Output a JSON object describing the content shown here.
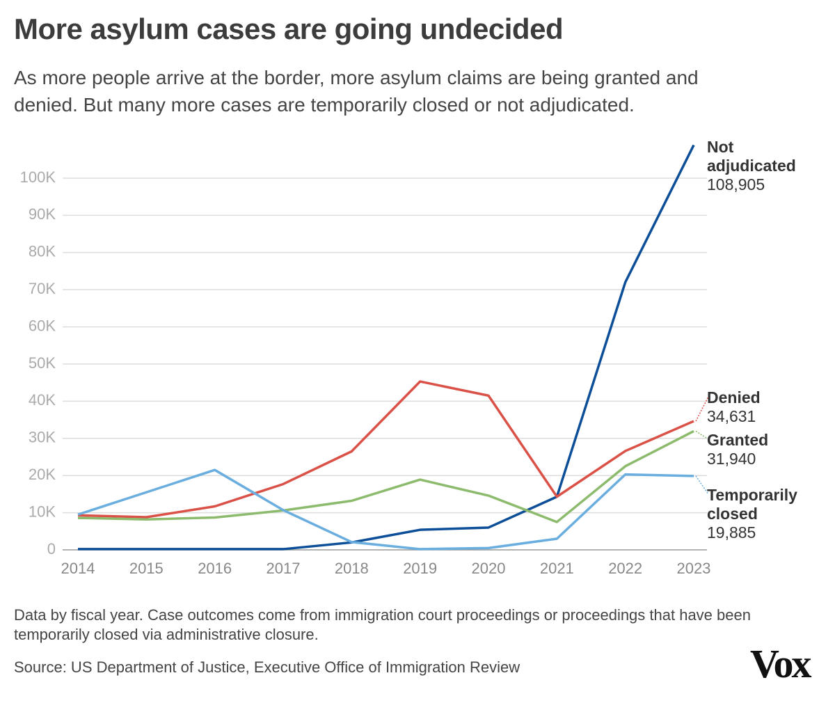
{
  "chart_data": {
    "type": "line",
    "title": "More asylum cases are going undecided",
    "subtitle": "As more people arrive at the border, more asylum claims are being granted and denied. But many more cases are temporarily closed or not adjudicated.",
    "categories": [
      "2014",
      "2015",
      "2016",
      "2017",
      "2018",
      "2019",
      "2020",
      "2021",
      "2022",
      "2023"
    ],
    "series": [
      {
        "name": "Not adjudicated",
        "color": "#0d4e98",
        "values": [
          200,
          200,
          200,
          200,
          2000,
          5400,
          6000,
          14300,
          72000,
          108905
        ],
        "value_labels": [
          null,
          null,
          null,
          null,
          null,
          null,
          null,
          null,
          null,
          "108,905"
        ]
      },
      {
        "name": "Denied",
        "color": "#da5147",
        "values": [
          9300,
          8800,
          11700,
          17700,
          26500,
          45300,
          41500,
          14300,
          26600,
          34631
        ],
        "value_labels": [
          null,
          null,
          null,
          null,
          null,
          null,
          null,
          null,
          null,
          "34,631"
        ]
      },
      {
        "name": "Granted",
        "color": "#8dbb6d",
        "values": [
          8600,
          8200,
          8700,
          10600,
          13200,
          18900,
          14600,
          7500,
          22500,
          31940
        ],
        "value_labels": [
          null,
          null,
          null,
          null,
          null,
          null,
          null,
          null,
          null,
          "31,940"
        ]
      },
      {
        "name": "Temporarily closed",
        "color": "#6aaedf",
        "values": [
          9500,
          15500,
          21500,
          10700,
          2100,
          200,
          500,
          3000,
          20300,
          19885
        ],
        "value_labels": [
          null,
          null,
          null,
          null,
          null,
          null,
          null,
          null,
          null,
          "19,885"
        ]
      }
    ],
    "ylim": [
      0,
      100000
    ],
    "yticks": [
      0,
      {
        "value": 10000,
        "label": "10K"
      },
      {
        "value": 20000,
        "label": "20K"
      },
      {
        "value": 30000,
        "label": "30K"
      },
      {
        "value": 40000,
        "label": "40K"
      },
      {
        "value": 50000,
        "label": "50K"
      },
      {
        "value": 60000,
        "label": "60K"
      },
      {
        "value": 70000,
        "label": "70K"
      },
      {
        "value": 80000,
        "label": "80K"
      },
      {
        "value": 90000,
        "label": "90K"
      },
      {
        "value": 100000,
        "label": "100K"
      }
    ],
    "grid": true,
    "note": "Data by fiscal year. Case outcomes come from immigration court proceedings or proceedings that have been temporarily closed via administrative closure.",
    "source": "Source: US Department of Justice, Executive Office of Immigration Review",
    "logo": "Vox"
  }
}
